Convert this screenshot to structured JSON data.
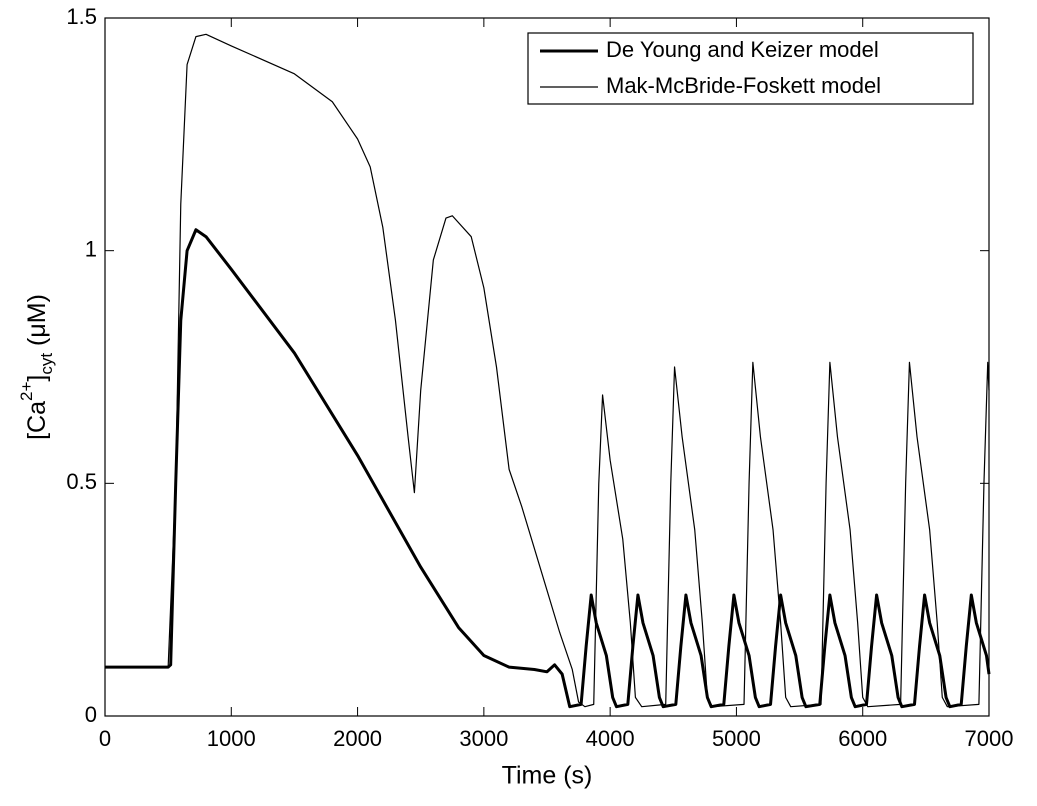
{
  "chart_data": {
    "type": "line",
    "xlabel": "Time (s)",
    "ylabel_parts": [
      "[Ca",
      "2+",
      "]",
      "cyt",
      " (μM)"
    ],
    "xlim": [
      0,
      7000
    ],
    "ylim": [
      0,
      1.5
    ],
    "xticks": [
      0,
      1000,
      2000,
      3000,
      4000,
      5000,
      6000,
      7000
    ],
    "yticks": [
      0,
      0.5,
      1,
      1.5
    ],
    "legend": "upper right",
    "series": [
      {
        "name": "De Young and Keizer model",
        "color": "#000000",
        "linewidth": 3,
        "x": [
          0,
          500,
          520,
          560,
          600,
          650,
          720,
          800,
          1000,
          1500,
          2000,
          2500,
          2800,
          3000,
          3200,
          3400,
          3500,
          3560,
          3620,
          3680,
          3770,
          3810,
          3850,
          3890,
          3970,
          4020,
          4050,
          4140,
          4180,
          4220,
          4260,
          4340,
          4390,
          4420,
          4520,
          4560,
          4600,
          4640,
          4720,
          4770,
          4800,
          4900,
          4940,
          4980,
          5020,
          5100,
          5150,
          5180,
          5270,
          5310,
          5350,
          5390,
          5470,
          5520,
          5550,
          5660,
          5700,
          5740,
          5780,
          5860,
          5910,
          5940,
          6030,
          6070,
          6110,
          6150,
          6230,
          6280,
          6310,
          6410,
          6450,
          6490,
          6530,
          6610,
          6660,
          6690,
          6780,
          6820,
          6860,
          6900,
          6980,
          7000
        ],
        "values": [
          0.105,
          0.105,
          0.11,
          0.5,
          0.85,
          1.0,
          1.045,
          1.03,
          0.96,
          0.78,
          0.56,
          0.32,
          0.19,
          0.13,
          0.105,
          0.1,
          0.095,
          0.11,
          0.09,
          0.02,
          0.025,
          0.15,
          0.26,
          0.2,
          0.13,
          0.04,
          0.02,
          0.025,
          0.15,
          0.26,
          0.2,
          0.13,
          0.04,
          0.02,
          0.025,
          0.15,
          0.26,
          0.2,
          0.13,
          0.04,
          0.02,
          0.025,
          0.15,
          0.26,
          0.2,
          0.13,
          0.04,
          0.02,
          0.025,
          0.15,
          0.26,
          0.2,
          0.13,
          0.04,
          0.02,
          0.025,
          0.15,
          0.26,
          0.2,
          0.13,
          0.04,
          0.02,
          0.025,
          0.15,
          0.26,
          0.2,
          0.13,
          0.04,
          0.02,
          0.025,
          0.15,
          0.26,
          0.2,
          0.13,
          0.04,
          0.02,
          0.025,
          0.15,
          0.26,
          0.2,
          0.13,
          0.09
        ]
      },
      {
        "name": "Mak-McBride-Foskett model",
        "color": "#000000",
        "linewidth": 1.2,
        "x": [
          0,
          500,
          560,
          600,
          650,
          720,
          800,
          1000,
          1500,
          1800,
          2000,
          2100,
          2200,
          2300,
          2400,
          2450,
          2500,
          2600,
          2700,
          2750,
          2900,
          3000,
          3100,
          3200,
          3300,
          3400,
          3500,
          3600,
          3700,
          3750,
          3800,
          3870,
          3910,
          3940,
          4000,
          4100,
          4160,
          4200,
          4250,
          4440,
          4480,
          4510,
          4570,
          4670,
          4730,
          4770,
          4810,
          5060,
          5100,
          5130,
          5190,
          5290,
          5350,
          5390,
          5430,
          5670,
          5710,
          5740,
          5800,
          5900,
          5960,
          6000,
          6040,
          6300,
          6340,
          6370,
          6430,
          6530,
          6590,
          6630,
          6670,
          6920,
          6960,
          6990,
          7000
        ],
        "values": [
          0.105,
          0.105,
          0.5,
          1.1,
          1.4,
          1.46,
          1.465,
          1.44,
          1.38,
          1.32,
          1.24,
          1.18,
          1.05,
          0.85,
          0.6,
          0.48,
          0.7,
          0.98,
          1.07,
          1.075,
          1.03,
          0.92,
          0.75,
          0.53,
          0.45,
          0.36,
          0.27,
          0.18,
          0.1,
          0.03,
          0.02,
          0.025,
          0.5,
          0.69,
          0.55,
          0.38,
          0.2,
          0.04,
          0.02,
          0.025,
          0.5,
          0.75,
          0.6,
          0.4,
          0.2,
          0.04,
          0.02,
          0.025,
          0.5,
          0.76,
          0.6,
          0.4,
          0.2,
          0.04,
          0.02,
          0.025,
          0.5,
          0.76,
          0.6,
          0.4,
          0.2,
          0.04,
          0.02,
          0.025,
          0.5,
          0.76,
          0.6,
          0.4,
          0.2,
          0.04,
          0.02,
          0.025,
          0.5,
          0.76,
          0.7
        ]
      }
    ]
  }
}
